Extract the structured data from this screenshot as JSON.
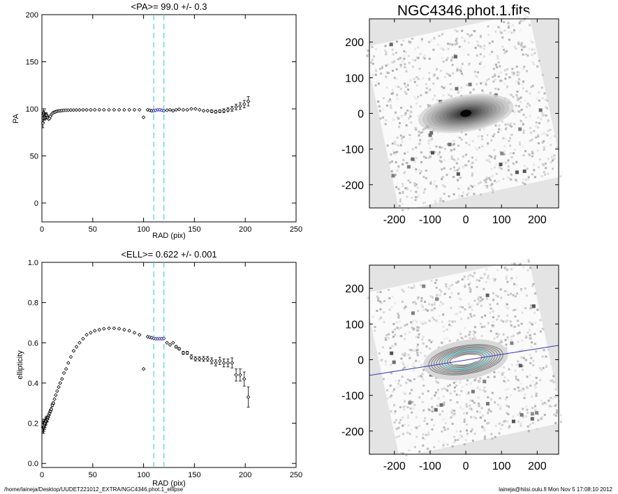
{
  "image_title": "NGC4346.phot.1.fits",
  "footer": {
    "path": "/home/laineja/Desktop/UUDET221012_EXTRA/NGC4346.phot.1_ellipse",
    "user_date": "laineja@hiisi.oulu.fi  Mon Nov  5 17:08:10 2012"
  },
  "colors": {
    "points": "#000000",
    "highlight": "#1a1aa8",
    "band": "#49d3d3",
    "major_axis": "#3333bb",
    "contour": "#3fa9a9"
  },
  "chart_data": [
    {
      "type": "scatter",
      "title": "<PA>=  99.0 +/-   0.3",
      "xlabel": "RAD (pix)",
      "ylabel": "PA",
      "xlim": [
        0,
        250
      ],
      "ylim": [
        -20,
        200
      ],
      "x_ticks": [
        "0",
        "50",
        "100",
        "150",
        "200",
        "250"
      ],
      "y_ticks": [
        "0",
        "50",
        "100",
        "150",
        "200"
      ],
      "band_x": [
        110,
        120
      ],
      "outlier": {
        "x": 100,
        "y": 91
      },
      "highlight_x_range": [
        110,
        120
      ],
      "x": [
        1,
        1.3,
        1.7,
        2,
        2.4,
        2.8,
        3.2,
        3.7,
        4.2,
        4.8,
        5.4,
        6,
        6.7,
        7.5,
        8.3,
        9.2,
        10.2,
        11.2,
        12.4,
        13.6,
        15,
        16.5,
        18,
        19.8,
        21.7,
        23.8,
        26,
        28.5,
        31.2,
        34,
        37,
        40.5,
        44,
        48,
        52,
        56.5,
        61,
        66,
        71,
        76,
        81,
        86,
        91,
        96,
        104,
        106,
        108,
        110,
        112,
        114,
        116,
        118,
        120,
        123,
        126,
        129,
        132,
        135,
        139,
        143,
        147,
        151,
        155,
        159,
        163,
        167,
        171,
        175,
        179,
        183,
        187,
        191,
        195,
        199,
        203
      ],
      "y": [
        85,
        90,
        96,
        95,
        92,
        90,
        91,
        93,
        94,
        93,
        91,
        90,
        89,
        90,
        92,
        94,
        95,
        96,
        96.5,
        97,
        97.5,
        97.8,
        98,
        98.2,
        98.4,
        98.5,
        98.6,
        98.7,
        98.7,
        98.8,
        98.8,
        98.9,
        98.9,
        98.9,
        99,
        99,
        99,
        99,
        99,
        99,
        99,
        99,
        99,
        99,
        99,
        98.5,
        98,
        98,
        98.5,
        99,
        99,
        98.5,
        98,
        98.5,
        99,
        98,
        99,
        99.5,
        99,
        99,
        100,
        100,
        99,
        98,
        98,
        97.5,
        97,
        97.5,
        98,
        99,
        100,
        102,
        103,
        105,
        108
      ],
      "err": [
        5,
        4,
        4,
        3,
        3,
        2,
        2,
        2,
        2,
        1.5,
        1.5,
        1,
        1,
        1,
        1,
        1,
        1,
        1,
        1,
        0.8,
        0.8,
        0.8,
        0.7,
        0.7,
        0.6,
        0.6,
        0.6,
        0.5,
        0.5,
        0.5,
        0.5,
        0.5,
        0.5,
        0.5,
        0.5,
        0.5,
        0.5,
        0.5,
        0.5,
        0.5,
        0.5,
        0.5,
        0.5,
        0.5,
        0.5,
        0.5,
        0.5,
        0.5,
        0.5,
        0.5,
        0.5,
        0.5,
        0.5,
        1,
        1,
        1,
        1,
        1,
        1,
        1,
        1,
        1,
        1,
        1,
        1,
        1.5,
        1.5,
        1.5,
        2,
        2,
        2.5,
        3,
        3.5,
        4,
        5
      ]
    },
    {
      "type": "scatter",
      "title": "<ELL>= 0.622 +/-  0.001",
      "xlabel": "RAD (pix)",
      "ylabel": "ellipticity",
      "xlim": [
        0,
        250
      ],
      "ylim": [
        -0.02,
        1.0
      ],
      "x_ticks": [
        "0",
        "50",
        "100",
        "150",
        "200",
        "250"
      ],
      "y_ticks": [
        "0.0",
        "0.2",
        "0.4",
        "0.6",
        "0.8",
        "1.0"
      ],
      "band_x": [
        110,
        120
      ],
      "outlier": {
        "x": 100,
        "y": 0.47
      },
      "highlight_x_range": [
        110,
        120
      ],
      "x": [
        1,
        1.3,
        1.7,
        2,
        2.4,
        2.8,
        3.2,
        3.7,
        4.2,
        4.8,
        5.4,
        6,
        6.7,
        7.5,
        8.3,
        9.2,
        10.2,
        11.2,
        12.4,
        13.6,
        15,
        16.5,
        18,
        19.8,
        21.7,
        23.8,
        26,
        28.5,
        31.2,
        34,
        37,
        40.5,
        44,
        48,
        52,
        56.5,
        61,
        66,
        71,
        76,
        81,
        86,
        91,
        96,
        104,
        106,
        108,
        110,
        112,
        114,
        116,
        118,
        120,
        123,
        126,
        129,
        132,
        135,
        139,
        143,
        147,
        151,
        155,
        159,
        163,
        167,
        171,
        175,
        179,
        183,
        187,
        191,
        195,
        199,
        203
      ],
      "y": [
        0.18,
        0.19,
        0.18,
        0.18,
        0.2,
        0.19,
        0.2,
        0.21,
        0.21,
        0.22,
        0.22,
        0.23,
        0.24,
        0.25,
        0.26,
        0.27,
        0.29,
        0.3,
        0.32,
        0.34,
        0.36,
        0.38,
        0.4,
        0.42,
        0.45,
        0.47,
        0.5,
        0.53,
        0.56,
        0.58,
        0.6,
        0.62,
        0.64,
        0.65,
        0.66,
        0.665,
        0.67,
        0.672,
        0.672,
        0.67,
        0.665,
        0.66,
        0.65,
        0.64,
        0.63,
        0.628,
        0.625,
        0.622,
        0.62,
        0.62,
        0.62,
        0.62,
        0.622,
        0.6,
        0.59,
        0.6,
        0.58,
        0.57,
        0.55,
        0.55,
        0.53,
        0.52,
        0.52,
        0.52,
        0.52,
        0.51,
        0.5,
        0.51,
        0.5,
        0.5,
        0.5,
        0.44,
        0.44,
        0.42,
        0.33
      ],
      "err": [
        0.03,
        0.03,
        0.03,
        0.02,
        0.02,
        0.02,
        0.02,
        0.02,
        0.015,
        0.015,
        0.012,
        0.01,
        0.01,
        0.01,
        0.008,
        0.008,
        0.006,
        0.006,
        0.005,
        0.005,
        0.005,
        0.004,
        0.004,
        0.004,
        0.004,
        0.003,
        0.003,
        0.003,
        0.003,
        0.003,
        0.003,
        0.003,
        0.003,
        0.003,
        0.003,
        0.003,
        0.003,
        0.003,
        0.003,
        0.003,
        0.003,
        0.003,
        0.003,
        0.003,
        0.003,
        0.003,
        0.003,
        0.003,
        0.003,
        0.003,
        0.003,
        0.003,
        0.003,
        0.005,
        0.005,
        0.005,
        0.006,
        0.006,
        0.008,
        0.008,
        0.01,
        0.01,
        0.01,
        0.012,
        0.012,
        0.015,
        0.015,
        0.018,
        0.02,
        0.02,
        0.025,
        0.03,
        0.03,
        0.035,
        0.05
      ]
    },
    {
      "type": "heatmap",
      "title": "NGC4346.phot.1.fits",
      "xlim": [
        -270,
        260
      ],
      "ylim": [
        -265,
        265
      ],
      "x_ticks": [
        "-200",
        "-100",
        "0",
        "100",
        "200"
      ],
      "y_ticks": [
        "-200",
        "-100",
        "0",
        "100",
        "200"
      ]
    },
    {
      "type": "heatmap",
      "title": "",
      "xlim": [
        -270,
        260
      ],
      "ylim": [
        -265,
        265
      ],
      "x_ticks": [
        "-200",
        "-100",
        "0",
        "100",
        "200"
      ],
      "y_ticks": [
        "-200",
        "-100",
        "0",
        "100",
        "200"
      ],
      "overlay": "ellipse contours with major axis line at PA 99"
    }
  ]
}
